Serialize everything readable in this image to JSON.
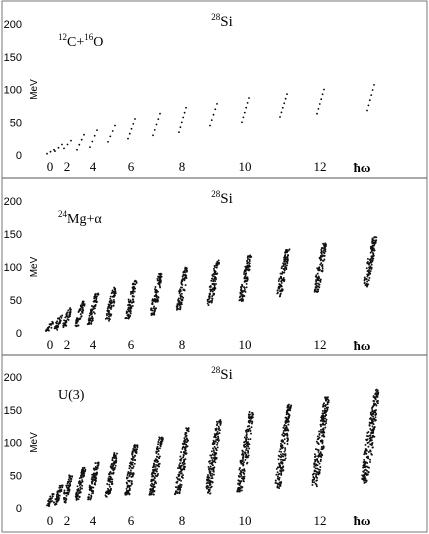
{
  "figure": {
    "nucleus": "28Si"
  },
  "chart_data": [
    {
      "type": "scatter",
      "title_mass": "28",
      "title_symbol": "Si",
      "label_parts": [
        {
          "text": "12",
          "sup": true
        },
        {
          "text": "C+",
          "sup": false
        },
        {
          "text": "16",
          "sup": true
        },
        {
          "text": "O",
          "sup": false
        }
      ],
      "ylabel": "MeV",
      "ylim": [
        -10,
        215
      ],
      "yticks": [
        0,
        50,
        100,
        150,
        200
      ],
      "xticks": [
        "0",
        "2",
        "4",
        "6",
        "8",
        "10",
        "12"
      ],
      "xunit": "ħω",
      "point_style": "sparse",
      "bands": [
        {
          "n": 0,
          "ymin": 2,
          "ymax": 8
        },
        {
          "n": 1,
          "ymin": 6,
          "ymax": 16
        },
        {
          "n": 2,
          "ymin": 10,
          "ymax": 22
        },
        {
          "n": 3,
          "ymin": 8,
          "ymax": 31
        },
        {
          "n": 4,
          "ymin": 12,
          "ymax": 38
        },
        {
          "n": 5,
          "ymin": 20,
          "ymax": 45
        },
        {
          "n": 6,
          "ymin": 25,
          "ymax": 55
        },
        {
          "n": 7,
          "ymin": 30,
          "ymax": 63
        },
        {
          "n": 8,
          "ymin": 35,
          "ymax": 72
        },
        {
          "n": 9,
          "ymin": 45,
          "ymax": 78
        },
        {
          "n": 10,
          "ymin": 50,
          "ymax": 87
        },
        {
          "n": 11,
          "ymin": 58,
          "ymax": 93
        },
        {
          "n": 12,
          "ymin": 63,
          "ymax": 100
        },
        {
          "n": 13,
          "ymin": 68,
          "ymax": 107
        }
      ]
    },
    {
      "type": "scatter",
      "title_mass": "28",
      "title_symbol": "Si",
      "label_parts": [
        {
          "text": "24",
          "sup": true
        },
        {
          "text": "Mg+α",
          "sup": false
        }
      ],
      "ylabel": "MeV",
      "ylim": [
        -10,
        215
      ],
      "yticks": [
        0,
        50,
        100,
        150,
        200
      ],
      "xticks": [
        "0",
        "2",
        "4",
        "6",
        "8",
        "10",
        "12"
      ],
      "xunit": "ħω",
      "point_style": "band",
      "bands": [
        {
          "n": 0,
          "ymin": 3,
          "ymax": 18
        },
        {
          "n": 1,
          "ymin": 5,
          "ymax": 27
        },
        {
          "n": 2,
          "ymin": 8,
          "ymax": 38
        },
        {
          "n": 3,
          "ymin": 10,
          "ymax": 48
        },
        {
          "n": 4,
          "ymin": 13,
          "ymax": 60
        },
        {
          "n": 5,
          "ymin": 18,
          "ymax": 70
        },
        {
          "n": 6,
          "ymin": 22,
          "ymax": 80
        },
        {
          "n": 7,
          "ymin": 27,
          "ymax": 90
        },
        {
          "n": 8,
          "ymin": 35,
          "ymax": 100
        },
        {
          "n": 9,
          "ymin": 42,
          "ymax": 110
        },
        {
          "n": 10,
          "ymin": 48,
          "ymax": 118
        },
        {
          "n": 11,
          "ymin": 55,
          "ymax": 128
        },
        {
          "n": 12,
          "ymin": 62,
          "ymax": 137
        },
        {
          "n": 13,
          "ymin": 70,
          "ymax": 147
        }
      ]
    },
    {
      "type": "scatter",
      "title_mass": "28",
      "title_symbol": "Si",
      "label_parts": [
        {
          "text": "U(3)",
          "sup": false
        }
      ],
      "ylabel": "MeV",
      "ylim": [
        -10,
        215
      ],
      "yticks": [
        0,
        50,
        100,
        150,
        200
      ],
      "xticks": [
        "0",
        "2",
        "4",
        "6",
        "8",
        "10",
        "12"
      ],
      "xunit": "ħω",
      "point_style": "band",
      "bands": [
        {
          "n": 0,
          "ymin": 3,
          "ymax": 22
        },
        {
          "n": 1,
          "ymin": 5,
          "ymax": 36
        },
        {
          "n": 2,
          "ymin": 8,
          "ymax": 50
        },
        {
          "n": 3,
          "ymin": 10,
          "ymax": 62
        },
        {
          "n": 4,
          "ymin": 12,
          "ymax": 72
        },
        {
          "n": 5,
          "ymin": 15,
          "ymax": 85
        },
        {
          "n": 6,
          "ymin": 18,
          "ymax": 97
        },
        {
          "n": 7,
          "ymin": 20,
          "ymax": 110
        },
        {
          "n": 8,
          "ymin": 20,
          "ymax": 122
        },
        {
          "n": 9,
          "ymin": 22,
          "ymax": 135
        },
        {
          "n": 10,
          "ymin": 25,
          "ymax": 147
        },
        {
          "n": 11,
          "ymin": 30,
          "ymax": 158
        },
        {
          "n": 12,
          "ymin": 32,
          "ymax": 170
        },
        {
          "n": 13,
          "ymin": 38,
          "ymax": 182
        }
      ]
    }
  ]
}
